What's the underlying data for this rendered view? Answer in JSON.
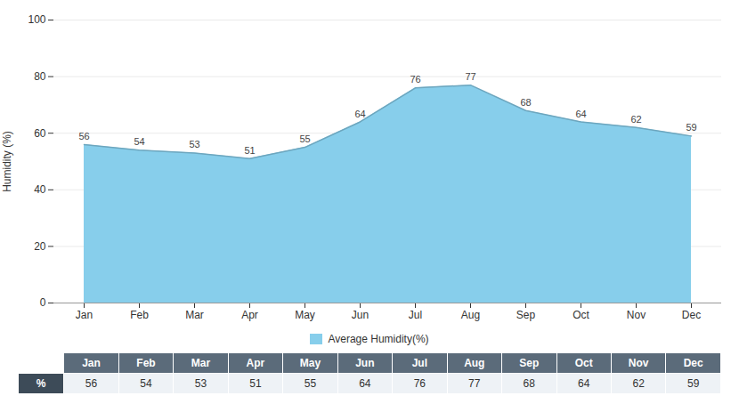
{
  "chart_data": {
    "type": "area",
    "categories": [
      "Jan",
      "Feb",
      "Mar",
      "Apr",
      "May",
      "Jun",
      "Jul",
      "Aug",
      "Sep",
      "Oct",
      "Nov",
      "Dec"
    ],
    "series": [
      {
        "name": "Average Humidity(%)",
        "color": "#87CEEB",
        "values": [
          56,
          54,
          53,
          51,
          55,
          64,
          76,
          77,
          68,
          64,
          62,
          59
        ]
      }
    ],
    "ylabel": "Humidity (%)",
    "ylim": [
      0,
      100
    ],
    "yticks": [
      0,
      20,
      40,
      60,
      80,
      100
    ],
    "grid": true,
    "legend": "bottom",
    "data_labels": true,
    "table_row_label": "%"
  }
}
